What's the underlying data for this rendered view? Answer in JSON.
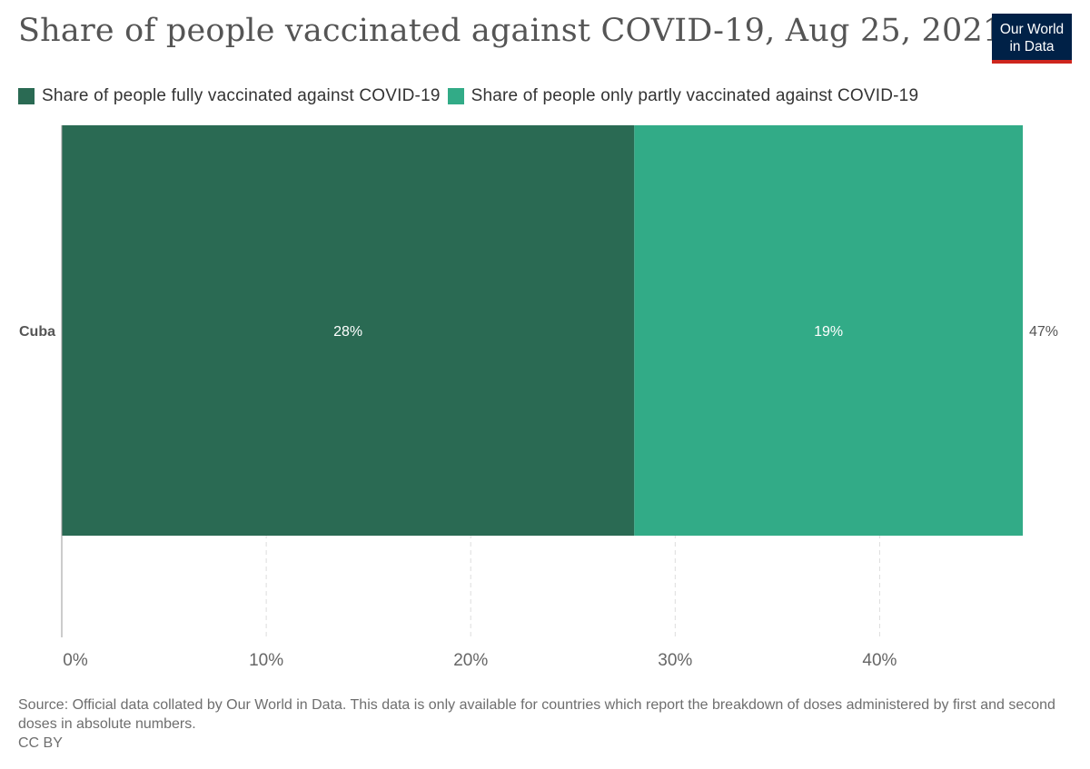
{
  "header": {
    "title": "Share of people vaccinated against COVID-19, Aug 25, 2021",
    "logo_line1": "Our World",
    "logo_line2": "in Data"
  },
  "legend": [
    {
      "label": "Share of people fully vaccinated against COVID-19",
      "color": "#2a6a53"
    },
    {
      "label": "Share of people only partly vaccinated against COVID-19",
      "color": "#32ab87"
    }
  ],
  "chart_data": {
    "type": "bar",
    "orientation": "horizontal",
    "stacked": true,
    "categories": [
      "Cuba"
    ],
    "series": [
      {
        "name": "Share of people fully vaccinated against COVID-19",
        "values": [
          28
        ],
        "labels": [
          "28%"
        ],
        "color": "#2a6a53"
      },
      {
        "name": "Share of people only partly vaccinated against COVID-19",
        "values": [
          19
        ],
        "labels": [
          "19%"
        ],
        "color": "#32ab87"
      }
    ],
    "totals": [
      47
    ],
    "total_labels": [
      "47%"
    ],
    "title": "Share of people vaccinated against COVID-19, Aug 25, 2021",
    "xlim": [
      0,
      47
    ],
    "xticks": [
      0,
      10,
      20,
      30,
      40
    ],
    "xtick_labels": [
      "0%",
      "10%",
      "20%",
      "30%",
      "40%"
    ],
    "grid": true
  },
  "footer": {
    "source": "Source: Official data collated by Our World in Data. This data is only available for countries which report the breakdown of doses administered by first and second doses in absolute numbers.",
    "license": "CC BY"
  }
}
